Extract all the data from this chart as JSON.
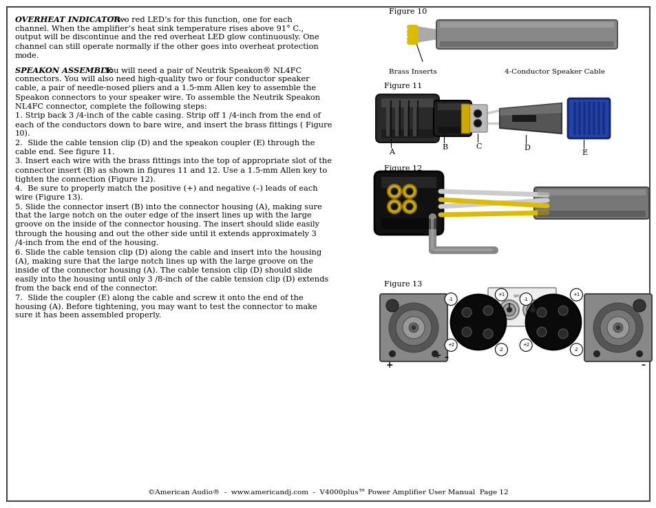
{
  "page_bg": "#ffffff",
  "footer_text": "©American Audio®  -  www.americandj.com  -  V4000plus™ Power Amplifier User Manual  Page 12",
  "fig10_label": "Figure 10",
  "fig10_brass": "Brass Inserts",
  "fig10_cable": "4-Conductor Speaker Cable",
  "fig11_label": "Figure 11",
  "fig11_letters": [
    "A",
    "B",
    "C",
    "D",
    "E"
  ],
  "fig12_label": "Figure 12",
  "fig13_label": "Figure 13",
  "title1": "OVERHEAT INDICATOR -",
  "body1_lines": [
    " Two red LED’s for this function, one for each",
    "channel. When the amplifier’s heat sink temperature rises above 91° C.,",
    "output will be discontinue and the red overheat LED glow continuously. One",
    "channel can still operate normally if the other goes into overheat protection",
    "mode."
  ],
  "title2": "SPEAKON ASSEMBLY:",
  "body2_lines": [
    " You will need a pair of Neutrik Speakon® NL4FC",
    "connectors. You will also need high-quality two or four conductor speaker",
    "cable, a pair of needle-nosed pliers and a 1.5-mm Allen key to assemble the",
    "Speakon connectors to your speaker wire. To assemble the Neutrik Speakon",
    "NL4FC connector, complete the following steps:",
    "1. Strip back 3 /4-inch of the cable casing. Strip off 1 /4-inch from the end of",
    "each of the conductors down to bare wire, and insert the brass fittings ( Figure",
    "10).",
    "2.  Slide the cable tension clip (D) and the speakon coupler (E) through the",
    "cable end. See figure 11.",
    "3. Insert each wire with the brass fittings into the top of appropriate slot of the",
    "connector insert (B) as shown in figures 11 and 12. Use a 1.5-mm Allen key to",
    "tighten the connection (Figure 12).",
    "4.  Be sure to properly match the positive (+) and negative (–) leads of each",
    "wire (Figure 13).",
    "5. Slide the connector insert (B) into the connector housing (A), making sure",
    "that the large notch on the outer edge of the insert lines up with the large",
    "groove on the inside of the connector housing. The insert should slide easily",
    "through the housing and out the other side until it extends approximately 3",
    "/4-inch from the end of the housing.",
    "6. Slide the cable tension clip (D) along the cable and insert into the housing",
    "(A), making sure that the large notch lines up with the large groove on the",
    "inside of the connector housing (A). The cable tension clip (D) should slide",
    "easily into the housing until only 3 /8-inch of the cable tension clip (D) extends",
    "from the back end of the connector.",
    "7.  Slide the coupler (E) along the cable and screw it onto the end of the",
    "housing (A). Before tightening, you may want to test the connector to make",
    "sure it has been assembled properly."
  ]
}
